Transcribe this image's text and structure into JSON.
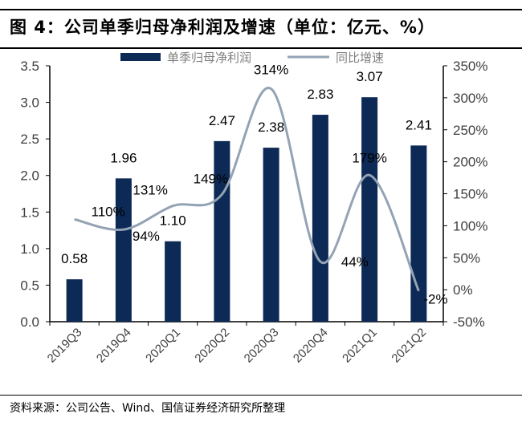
{
  "title": "图 4：公司单季归母净利润及增速（单位：亿元、%）",
  "source": "资料来源：公司公告、Wind、国信证券经济研究所整理",
  "chart_data": {
    "type": "bar+line",
    "title": "",
    "categories": [
      "2019Q3",
      "2019Q4",
      "2020Q1",
      "2020Q2",
      "2020Q3",
      "2020Q4",
      "2021Q1",
      "2021Q2"
    ],
    "series": [
      {
        "name": "单季归母净利润",
        "type": "bar",
        "axis": "left",
        "color": "#0d2a56",
        "values": [
          0.58,
          1.96,
          1.1,
          2.47,
          2.38,
          2.83,
          3.07,
          2.41
        ],
        "labels": [
          "0.58",
          "1.96",
          "1.10",
          "2.47",
          "2.38",
          "2.83",
          "3.07",
          "2.41"
        ]
      },
      {
        "name": "同比增速",
        "type": "line",
        "axis": "right",
        "color": "#94a3b4",
        "smooth": true,
        "values": [
          110,
          94,
          131,
          149,
          314,
          44,
          179,
          -2
        ],
        "labels": [
          "110%",
          "94%",
          "131%",
          "149%",
          "314%",
          "44%",
          "179%",
          "-2%"
        ]
      }
    ],
    "y_left": {
      "range": [
        0,
        3.5
      ],
      "ticks": [
        "0.0",
        "0.5",
        "1.0",
        "1.5",
        "2.0",
        "2.5",
        "3.0",
        "3.5"
      ]
    },
    "y_right": {
      "range": [
        -50,
        350
      ],
      "ticks": [
        "-50%",
        "0%",
        "50%",
        "100%",
        "150%",
        "200%",
        "250%",
        "300%",
        "350%"
      ]
    },
    "legend": "top-center",
    "grid": false
  }
}
